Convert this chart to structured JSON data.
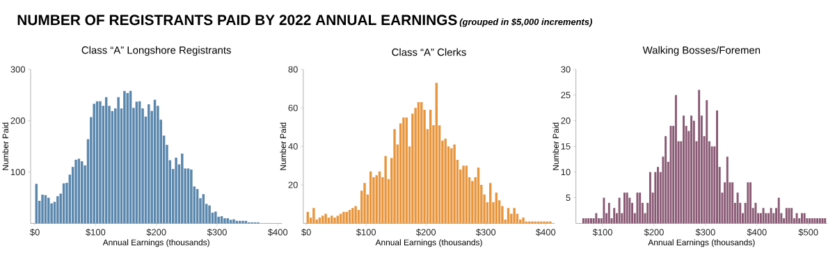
{
  "chart_data": [
    {
      "type": "other",
      "title": "NUMBER OF REGISTRANTS PAID BY 2022 ANNUAL EARNINGS",
      "subtitle": "(grouped in $5,000 increments)"
    },
    {
      "type": "histogram",
      "title": "Class “A” Longshore Registrants",
      "xlabel": "Annual Earnings (thousands)",
      "ylabel": "Number Paid",
      "color": "#5b87ad",
      "bins": [
        0,
        5,
        10,
        15,
        20,
        25,
        30,
        35,
        40,
        45,
        50,
        55,
        60,
        65,
        70,
        75,
        80,
        85,
        90,
        95,
        100,
        105,
        110,
        115,
        120,
        125,
        130,
        135,
        140,
        145,
        150,
        155,
        160,
        165,
        170,
        175,
        180,
        185,
        190,
        195,
        200,
        205,
        210,
        215,
        220,
        225,
        230,
        235,
        240,
        245,
        250,
        255,
        260,
        265,
        270,
        275,
        280,
        285,
        290,
        295,
        300,
        305,
        310,
        315,
        320,
        325,
        330,
        335,
        340,
        345,
        350,
        355,
        360,
        365,
        370
      ],
      "values": [
        77,
        44,
        56,
        55,
        50,
        39,
        42,
        53,
        58,
        78,
        79,
        95,
        110,
        124,
        126,
        121,
        113,
        164,
        207,
        233,
        238,
        238,
        229,
        246,
        229,
        219,
        224,
        246,
        224,
        258,
        254,
        258,
        225,
        237,
        238,
        224,
        208,
        232,
        219,
        241,
        229,
        202,
        171,
        153,
        123,
        106,
        128,
        115,
        136,
        107,
        107,
        105,
        72,
        67,
        49,
        57,
        38,
        35,
        21,
        23,
        13,
        14,
        10,
        10,
        7,
        8,
        5,
        5,
        5,
        5,
        2,
        2,
        2,
        2
      ],
      "xlim": [
        -7,
        407
      ],
      "ylim": [
        0,
        300
      ],
      "xticks": [
        {
          "value": 0,
          "label": "$0"
        },
        {
          "value": 100,
          "label": "$100"
        },
        {
          "value": 200,
          "label": "$200"
        },
        {
          "value": 300,
          "label": "$300"
        },
        {
          "value": 400,
          "label": "$400"
        }
      ],
      "yticks": [
        100,
        200,
        300
      ]
    },
    {
      "type": "histogram",
      "title": "Class “A” Clerks",
      "xlabel": "Annual Earnings (thousands)",
      "ylabel": "Number Paid",
      "color": "#e8963e",
      "bins": [
        0,
        5,
        10,
        15,
        20,
        25,
        30,
        35,
        40,
        45,
        50,
        55,
        60,
        65,
        70,
        75,
        80,
        85,
        90,
        95,
        100,
        105,
        110,
        115,
        120,
        125,
        130,
        135,
        140,
        145,
        150,
        155,
        160,
        165,
        170,
        175,
        180,
        185,
        190,
        195,
        200,
        205,
        210,
        215,
        220,
        225,
        230,
        235,
        240,
        245,
        250,
        255,
        260,
        265,
        270,
        275,
        280,
        285,
        290,
        295,
        300,
        305,
        310,
        315,
        320,
        325,
        330,
        335,
        340,
        345,
        350,
        355,
        360,
        365,
        370,
        375,
        380,
        385,
        390,
        395,
        400,
        405,
        410
      ],
      "values": [
        6,
        3,
        8,
        2,
        3,
        4,
        5,
        3,
        4,
        3,
        4,
        5,
        6,
        6,
        7,
        8,
        9,
        7,
        17,
        21,
        15,
        27,
        24,
        25,
        27,
        24,
        35,
        23,
        34,
        49,
        41,
        52,
        55,
        55,
        40,
        57,
        60,
        63,
        63,
        59,
        49,
        59,
        51,
        73,
        51,
        43,
        44,
        40,
        39,
        41,
        33,
        28,
        30,
        30,
        24,
        22,
        24,
        29,
        20,
        15,
        11,
        21,
        11,
        16,
        12,
        9,
        2,
        8,
        5,
        8,
        5,
        2,
        3,
        1,
        1,
        1,
        1,
        1,
        1,
        1,
        1,
        1
      ],
      "xlim": [
        -5,
        415
      ],
      "ylim": [
        0,
        80
      ],
      "xticks": [
        {
          "value": 0,
          "label": "$0"
        },
        {
          "value": 100,
          "label": "$100"
        },
        {
          "value": 200,
          "label": "$200"
        },
        {
          "value": 300,
          "label": "$300"
        },
        {
          "value": 400,
          "label": "$400"
        }
      ],
      "yticks": [
        20,
        40,
        60,
        80
      ]
    },
    {
      "type": "histogram",
      "title": "Walking Bosses/Foremen",
      "xlabel": "Annual Earnings (thousands)",
      "ylabel": "Number Paid",
      "color": "#8a5a75",
      "bins": [
        60,
        65,
        70,
        75,
        80,
        85,
        90,
        95,
        100,
        105,
        110,
        115,
        120,
        125,
        130,
        135,
        140,
        145,
        150,
        155,
        160,
        165,
        170,
        175,
        180,
        185,
        190,
        195,
        200,
        205,
        210,
        215,
        220,
        225,
        230,
        235,
        240,
        245,
        250,
        255,
        260,
        265,
        270,
        275,
        280,
        285,
        290,
        295,
        300,
        305,
        310,
        315,
        320,
        325,
        330,
        335,
        340,
        345,
        350,
        355,
        360,
        365,
        370,
        375,
        380,
        385,
        390,
        395,
        400,
        405,
        410,
        415,
        420,
        425,
        430,
        435,
        440,
        445,
        450,
        455,
        460,
        465,
        470,
        475,
        480,
        485,
        490,
        495,
        500,
        505,
        510,
        515,
        520,
        525,
        530,
        535
      ],
      "values": [
        1,
        1,
        1,
        1,
        1,
        2,
        1,
        1,
        5,
        2,
        4,
        1,
        3,
        2,
        5,
        2,
        6,
        6,
        5,
        4,
        2,
        6,
        6,
        4,
        2,
        4,
        10,
        6,
        10,
        11,
        10,
        13,
        17,
        12,
        19,
        19,
        25,
        16,
        16,
        21,
        19,
        18,
        21,
        20,
        16,
        26,
        21,
        17,
        24,
        16,
        15,
        15,
        22,
        11,
        6,
        8,
        13,
        8,
        8,
        4,
        6,
        4,
        2,
        4,
        8,
        8,
        3,
        4,
        2,
        2,
        3,
        2,
        2,
        3,
        2,
        3,
        5,
        2,
        1,
        3,
        3,
        3,
        1,
        2,
        1,
        2,
        2,
        1,
        1,
        1,
        1,
        1,
        1,
        1,
        1
      ],
      "xlim": [
        48,
        537
      ],
      "ylim": [
        0,
        30
      ],
      "xticks": [
        {
          "value": 100,
          "label": "$100"
        },
        {
          "value": 200,
          "label": "$200"
        },
        {
          "value": 300,
          "label": "$300"
        },
        {
          "value": 400,
          "label": "$400"
        },
        {
          "value": 500,
          "label": "$500"
        }
      ],
      "yticks": [
        5,
        10,
        15,
        20,
        25,
        30
      ]
    }
  ]
}
